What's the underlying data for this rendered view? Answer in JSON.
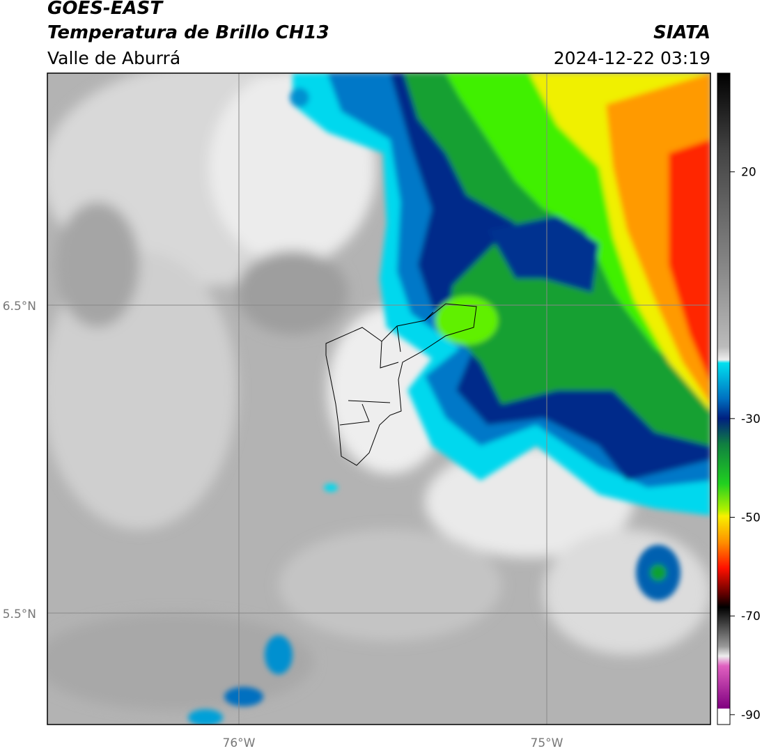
{
  "header": {
    "satellite": "GOES-EAST",
    "product": "Temperatura de Brillo CH13",
    "region": "Valle de Aburrá",
    "agency": "SIATA",
    "datetime": "2024-12-22 03:19"
  },
  "map": {
    "lat_labels": [
      "6.5°N",
      "5.5°N"
    ],
    "lon_labels": [
      "76°W",
      "75°W"
    ]
  },
  "colorbar": {
    "range": [
      -92,
      40
    ],
    "ticks": [
      20,
      -30,
      -50,
      -70,
      -90
    ]
  }
}
